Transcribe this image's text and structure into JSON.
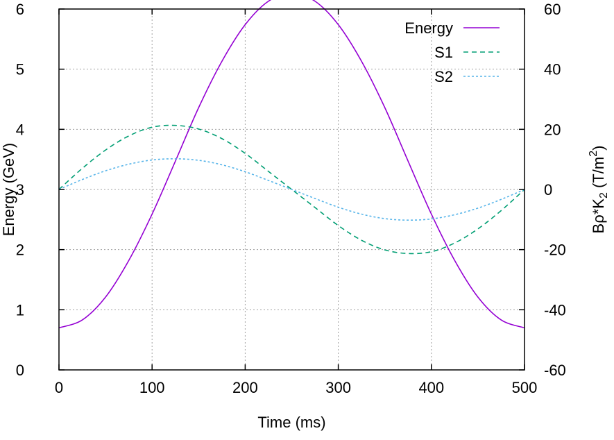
{
  "chart_data": {
    "type": "line",
    "xlabel": "Time (ms)",
    "ylabel": "Energy (GeV)",
    "y2label": {
      "base": "Bρ*K",
      "sub": "2",
      "unit_open": " (T/m",
      "sup": "2",
      "unit_close": ")"
    },
    "xlim": [
      0,
      500
    ],
    "ylim": [
      0,
      6
    ],
    "y2lim": [
      -60,
      60
    ],
    "x_ticks": [
      0,
      100,
      200,
      300,
      400,
      500
    ],
    "y_ticks": [
      0,
      1,
      2,
      3,
      4,
      5,
      6
    ],
    "y2_ticks": [
      -60,
      -40,
      -20,
      0,
      20,
      40,
      60
    ],
    "grid": true,
    "legend_position": "top-right",
    "series": [
      {
        "name": "Energy",
        "axis": "left",
        "color": "#9400d3",
        "dash": "solid",
        "x": [
          0,
          25,
          50,
          75,
          100,
          125,
          150,
          175,
          200,
          225,
          250,
          275,
          300,
          325,
          350,
          375,
          400,
          425,
          450,
          475,
          500
        ],
        "y": [
          0.7,
          0.83,
          1.21,
          1.82,
          2.59,
          3.47,
          4.36,
          5.13,
          5.74,
          6.13,
          6.26,
          6.13,
          5.74,
          5.13,
          4.36,
          3.47,
          2.59,
          1.82,
          1.21,
          0.83,
          0.7
        ]
      },
      {
        "name": "S1",
        "axis": "right",
        "color": "#009e73",
        "dash": "dashed",
        "x": [
          0,
          25,
          50,
          75,
          100,
          125,
          150,
          175,
          200,
          225,
          250,
          275,
          300,
          325,
          350,
          375,
          400,
          425,
          450,
          475,
          500
        ],
        "y": [
          0,
          7.0,
          13.1,
          17.8,
          20.7,
          21.3,
          20.1,
          16.9,
          12.0,
          6.0,
          0,
          -6.0,
          -12.0,
          -16.9,
          -20.1,
          -21.3,
          -20.7,
          -17.8,
          -13.1,
          -7.0,
          0
        ]
      },
      {
        "name": "S2",
        "axis": "right",
        "color": "#56b4e9",
        "dash": "dotted",
        "x": [
          0,
          25,
          50,
          75,
          100,
          125,
          150,
          175,
          200,
          225,
          250,
          275,
          300,
          325,
          350,
          375,
          400,
          425,
          450,
          475,
          500
        ],
        "y": [
          0,
          3.3,
          6.2,
          8.4,
          9.8,
          10.2,
          9.7,
          8.2,
          5.9,
          3.0,
          0,
          -3.0,
          -5.9,
          -8.2,
          -9.7,
          -10.2,
          -9.8,
          -8.4,
          -6.2,
          -3.3,
          0
        ]
      }
    ]
  }
}
